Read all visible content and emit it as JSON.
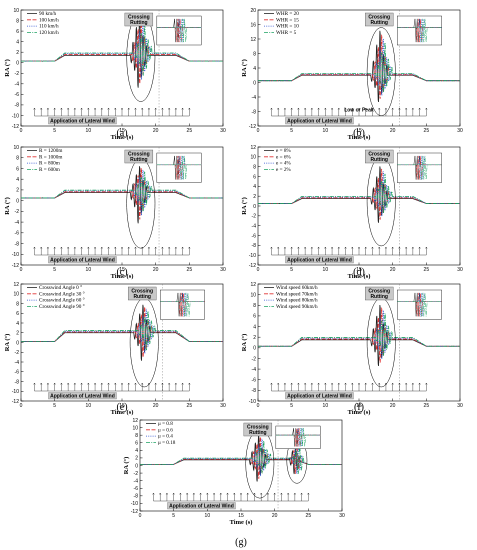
{
  "wind_label": "Application of Lateral Wind",
  "crossing_label": [
    "Crossing",
    "Rutting"
  ],
  "low_peak_label": "Low or Peak",
  "colors": [
    "#222222",
    "#e03030",
    "#2a4fd0",
    "#1aa060"
  ],
  "chart_data": [
    {
      "type": "line",
      "panel": "(a)",
      "xlabel": "Time (s)",
      "ylabel": "RA (°)",
      "xlim": [
        0,
        30
      ],
      "ylim": [
        -12,
        10
      ],
      "xticks": [
        0,
        5,
        10,
        15,
        20,
        25,
        30
      ],
      "yticks": [
        -12,
        -10,
        -8,
        -6,
        -4,
        -2,
        0,
        2,
        4,
        6,
        8,
        10
      ],
      "legend_position": "top-left",
      "series": [
        {
          "name": "90 km/h"
        },
        {
          "name": "100 km/h"
        },
        {
          "name": "110 km/h"
        },
        {
          "name": "120 km/h"
        }
      ],
      "wind_start": 2,
      "wind_end": 25,
      "crossing_time": 17.5,
      "base": 0.3,
      "peak": 1.4,
      "rise_start": 5,
      "fall_start": 23,
      "fall_end": 25,
      "spike_min": -7.5,
      "spike_max": 9.5,
      "annotations": [
        "Crossing Rutting",
        "Application of Lateral Wind"
      ]
    },
    {
      "type": "line",
      "panel": "(b)",
      "xlabel": "Time (s)",
      "ylabel": "RA (°)",
      "xlim": [
        0,
        30
      ],
      "ylim": [
        -12,
        20
      ],
      "xticks": [
        0,
        5,
        10,
        15,
        20,
        25,
        30
      ],
      "yticks": [
        -12,
        -8,
        -4,
        0,
        4,
        8,
        12,
        16,
        20
      ],
      "legend_position": "top-left",
      "series": [
        {
          "name": "WHR = 20"
        },
        {
          "name": "WHR = 15"
        },
        {
          "name": "WHR = 10"
        },
        {
          "name": "WHR = 5"
        }
      ],
      "wind_start": 2,
      "wind_end": 25,
      "crossing_time": 18,
      "base": 0.5,
      "peak": 2.0,
      "rise_start": 5,
      "fall_start": 23,
      "fall_end": 25,
      "spike_min": -9,
      "spike_max": 15,
      "annotations": [
        "Crossing Rutting",
        "Low or Peak",
        "Application of Lateral Wind"
      ]
    },
    {
      "type": "line",
      "panel": "(c)",
      "xlabel": "Time (s)",
      "ylabel": "RA (°)",
      "xlim": [
        0,
        30
      ],
      "ylim": [
        -12,
        10
      ],
      "xticks": [
        0,
        5,
        10,
        15,
        20,
        25,
        30
      ],
      "yticks": [
        -12,
        -10,
        -8,
        -6,
        -4,
        -2,
        0,
        2,
        4,
        6,
        8,
        10
      ],
      "legend_position": "top-left",
      "series": [
        {
          "name": "R = 1200m"
        },
        {
          "name": "R = 1000m"
        },
        {
          "name": "R = 800m"
        },
        {
          "name": "R = 600m"
        }
      ],
      "wind_start": 2,
      "wind_end": 25,
      "crossing_time": 17.5,
      "base": 0.5,
      "peak": 1.5,
      "rise_start": 5,
      "fall_start": 23,
      "fall_end": 25,
      "spike_min": -7,
      "spike_max": 6,
      "annotations": [
        "Crossing Rutting",
        "Application of Lateral Wind"
      ]
    },
    {
      "type": "line",
      "panel": "(d)",
      "xlabel": "Time (s)",
      "ylabel": "RA (°)",
      "xlim": [
        0,
        30
      ],
      "ylim": [
        -12,
        12
      ],
      "xticks": [
        0,
        5,
        10,
        15,
        20,
        25,
        30
      ],
      "yticks": [
        -12,
        -10,
        -8,
        -6,
        -4,
        -2,
        0,
        2,
        4,
        6,
        8,
        10,
        12
      ],
      "legend_position": "top-left",
      "series": [
        {
          "name": "e = 8%"
        },
        {
          "name": "e = 6%"
        },
        {
          "name": "e = 4%"
        },
        {
          "name": "e = 2%"
        }
      ],
      "wind_start": 2,
      "wind_end": 25,
      "crossing_time": 18,
      "base": 0.5,
      "peak": 1.5,
      "rise_start": 5,
      "fall_start": 23,
      "fall_end": 25,
      "spike_min": -6,
      "spike_max": 8,
      "annotations": [
        "Crossing Rutting",
        "Application of Lateral Wind"
      ]
    },
    {
      "type": "line",
      "panel": "(e)",
      "xlabel": "Time (s)",
      "ylabel": "RA (°)",
      "xlim": [
        0,
        30
      ],
      "ylim": [
        -12,
        12
      ],
      "xticks": [
        0,
        5,
        10,
        15,
        20,
        25,
        30
      ],
      "yticks": [
        -12,
        -10,
        -8,
        -6,
        -4,
        -2,
        0,
        2,
        4,
        6,
        8,
        10,
        12
      ],
      "legend_position": "top-left",
      "series": [
        {
          "name": "Crosswind Angle 0 °"
        },
        {
          "name": "Crosswind Angle 30 °"
        },
        {
          "name": "Crosswind Angle 60 °"
        },
        {
          "name": "Crosswind Angle 90 °"
        }
      ],
      "wind_start": 2,
      "wind_end": 25,
      "crossing_time": 18,
      "base": 0.2,
      "peak": 2.0,
      "rise_start": 5,
      "fall_start": 23,
      "fall_end": 25,
      "spike_min": -7,
      "spike_max": 7,
      "annotations": [
        "Crossing Rutting",
        "Application of Lateral Wind"
      ]
    },
    {
      "type": "line",
      "panel": "(f)",
      "xlabel": "Time (s)",
      "ylabel": "RA (°)",
      "xlim": [
        0,
        30
      ],
      "ylim": [
        -10,
        12
      ],
      "xticks": [
        0,
        5,
        10,
        15,
        20,
        25,
        30
      ],
      "yticks": [
        -10,
        -8,
        -6,
        -4,
        -2,
        0,
        2,
        4,
        6,
        8,
        10,
        12
      ],
      "legend_position": "top-left",
      "series": [
        {
          "name": "Wind speed 60km/h"
        },
        {
          "name": "Wind speed 70km/h"
        },
        {
          "name": "Wind speed 80km/h"
        },
        {
          "name": "Wind speed 90km/h"
        }
      ],
      "wind_start": 2,
      "wind_end": 25,
      "crossing_time": 18,
      "base": 0.3,
      "peak": 1.5,
      "rise_start": 5,
      "fall_start": 23,
      "fall_end": 25,
      "spike_min": -6,
      "spike_max": 8,
      "annotations": [
        "Crossing Rutting",
        "Application of Lateral Wind"
      ]
    },
    {
      "type": "line",
      "panel": "(g)",
      "xlabel": "Time (s)",
      "ylabel": "RA (°)",
      "xlim": [
        0,
        30
      ],
      "ylim": [
        -12,
        12
      ],
      "xticks": [
        0,
        5,
        10,
        15,
        20,
        25,
        30
      ],
      "yticks": [
        -12,
        -10,
        -8,
        -6,
        -4,
        -2,
        0,
        2,
        4,
        6,
        8,
        10,
        12
      ],
      "legend_position": "top-left",
      "series": [
        {
          "name": "μ = 0.8"
        },
        {
          "name": "μ = 0.6"
        },
        {
          "name": "μ = 0.4"
        },
        {
          "name": "μ = 0.18"
        }
      ],
      "wind_start": 2,
      "wind_end": 25,
      "crossing_time": 17.5,
      "base": 0.3,
      "peak": 1.5,
      "rise_start": 5,
      "fall_start": 23,
      "fall_end": 25,
      "spike_min": -7,
      "spike_max": 8,
      "second_event": 23,
      "annotations": [
        "Crossing Rutting",
        "Application of Lateral Wind"
      ]
    }
  ]
}
